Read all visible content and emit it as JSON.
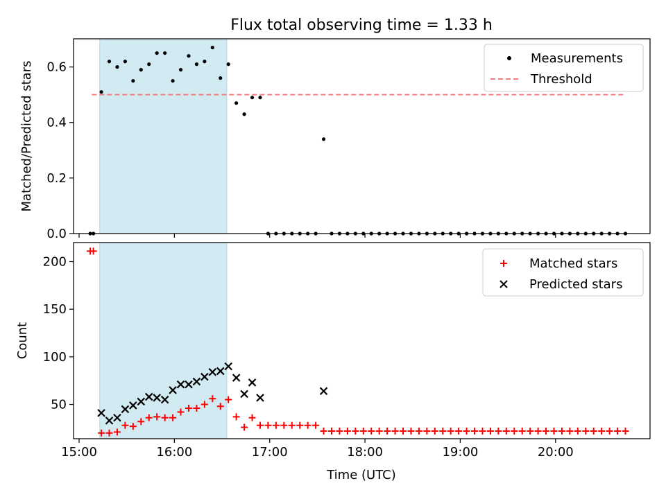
{
  "chart_data": [
    {
      "type": "scatter",
      "title": "Flux total observing time = 1.33 h",
      "ylabel": "Matched/Predicted stars",
      "xlabel": "",
      "xlim": [
        "15:00",
        "21:00"
      ],
      "ylim": [
        0,
        0.7
      ],
      "yticks": [
        "0.0",
        "0.2",
        "0.4",
        "0.6"
      ],
      "grid": false,
      "legend": "top-right",
      "shaded_interval": [
        "15:13",
        "16:33"
      ],
      "shaded_color": "#add8e6",
      "series": [
        {
          "name": "Measurements",
          "marker": "dot",
          "color": "#000000",
          "points": [
            [
              "15:07",
              0.0
            ],
            [
              "15:09",
              0.0
            ],
            [
              "15:14",
              0.51
            ],
            [
              "15:19",
              0.62
            ],
            [
              "15:24",
              0.6
            ],
            [
              "15:29",
              0.62
            ],
            [
              "15:34",
              0.55
            ],
            [
              "15:39",
              0.59
            ],
            [
              "15:44",
              0.61
            ],
            [
              "15:49",
              0.65
            ],
            [
              "15:54",
              0.65
            ],
            [
              "15:59",
              0.55
            ],
            [
              "16:04",
              0.59
            ],
            [
              "16:09",
              0.64
            ],
            [
              "16:14",
              0.61
            ],
            [
              "16:19",
              0.62
            ],
            [
              "16:24",
              0.67
            ],
            [
              "16:29",
              0.56
            ],
            [
              "16:34",
              0.61
            ],
            [
              "16:39",
              0.47
            ],
            [
              "16:44",
              0.43
            ],
            [
              "16:49",
              0.49
            ],
            [
              "16:54",
              0.49
            ],
            [
              "16:59",
              0.0
            ],
            [
              "17:04",
              0.0
            ],
            [
              "17:09",
              0.0
            ],
            [
              "17:14",
              0.0
            ],
            [
              "17:19",
              0.0
            ],
            [
              "17:24",
              0.0
            ],
            [
              "17:29",
              0.0
            ],
            [
              "17:34",
              0.34
            ],
            [
              "17:39",
              0.0
            ],
            [
              "17:44",
              0.0
            ],
            [
              "17:49",
              0.0
            ],
            [
              "17:54",
              0.0
            ],
            [
              "17:59",
              0.0
            ],
            [
              "18:04",
              0.0
            ],
            [
              "18:09",
              0.0
            ],
            [
              "18:14",
              0.0
            ],
            [
              "18:19",
              0.0
            ],
            [
              "18:24",
              0.0
            ],
            [
              "18:29",
              0.0
            ],
            [
              "18:34",
              0.0
            ],
            [
              "18:39",
              0.0
            ],
            [
              "18:44",
              0.0
            ],
            [
              "18:49",
              0.0
            ],
            [
              "18:54",
              0.0
            ],
            [
              "18:59",
              0.0
            ],
            [
              "19:04",
              0.0
            ],
            [
              "19:09",
              0.0
            ],
            [
              "19:14",
              0.0
            ],
            [
              "19:19",
              0.0
            ],
            [
              "19:24",
              0.0
            ],
            [
              "19:29",
              0.0
            ],
            [
              "19:34",
              0.0
            ],
            [
              "19:39",
              0.0
            ],
            [
              "19:44",
              0.0
            ],
            [
              "19:49",
              0.0
            ],
            [
              "19:54",
              0.0
            ],
            [
              "19:59",
              0.0
            ],
            [
              "20:04",
              0.0
            ],
            [
              "20:09",
              0.0
            ],
            [
              "20:14",
              0.0
            ],
            [
              "20:19",
              0.0
            ],
            [
              "20:24",
              0.0
            ],
            [
              "20:29",
              0.0
            ],
            [
              "20:34",
              0.0
            ],
            [
              "20:39",
              0.0
            ],
            [
              "20:44",
              0.0
            ]
          ]
        },
        {
          "name": "Threshold",
          "type": "line",
          "style": "dashed",
          "color": "#f08080",
          "points": [
            [
              "15:08",
              0.5
            ],
            [
              "20:44",
              0.5
            ]
          ]
        }
      ]
    },
    {
      "type": "scatter",
      "title": "",
      "ylabel": "Count",
      "xlabel": "Time (UTC)",
      "xlim": [
        "15:00",
        "21:00"
      ],
      "xticks": [
        "15:00",
        "16:00",
        "17:00",
        "18:00",
        "19:00",
        "20:00"
      ],
      "ylim": [
        14,
        220
      ],
      "yticks": [
        "50",
        "100",
        "150",
        "200"
      ],
      "grid": false,
      "legend": "top-right",
      "shaded_interval": [
        "15:13",
        "16:33"
      ],
      "shaded_color": "#add8e6",
      "series": [
        {
          "name": "Matched stars",
          "marker": "plus",
          "color": "#ff0000",
          "points": [
            [
              "15:07",
              211
            ],
            [
              "15:09",
              211
            ],
            [
              "15:14",
              20
            ],
            [
              "15:19",
              20
            ],
            [
              "15:24",
              21
            ],
            [
              "15:29",
              28
            ],
            [
              "15:34",
              27
            ],
            [
              "15:39",
              32
            ],
            [
              "15:44",
              36
            ],
            [
              "15:49",
              37
            ],
            [
              "15:54",
              36
            ],
            [
              "15:59",
              36
            ],
            [
              "16:04",
              42
            ],
            [
              "16:09",
              46
            ],
            [
              "16:14",
              46
            ],
            [
              "16:19",
              50
            ],
            [
              "16:24",
              56
            ],
            [
              "16:29",
              48
            ],
            [
              "16:34",
              55
            ],
            [
              "16:39",
              37
            ],
            [
              "16:44",
              26
            ],
            [
              "16:49",
              36
            ],
            [
              "16:54",
              28
            ],
            [
              "16:59",
              28
            ],
            [
              "17:04",
              28
            ],
            [
              "17:09",
              28
            ],
            [
              "17:14",
              28
            ],
            [
              "17:19",
              28
            ],
            [
              "17:24",
              28
            ],
            [
              "17:29",
              28
            ],
            [
              "17:34",
              22
            ],
            [
              "17:39",
              22
            ],
            [
              "17:44",
              22
            ],
            [
              "17:49",
              22
            ],
            [
              "17:54",
              22
            ],
            [
              "17:59",
              22
            ],
            [
              "18:04",
              22
            ],
            [
              "18:09",
              22
            ],
            [
              "18:14",
              22
            ],
            [
              "18:19",
              22
            ],
            [
              "18:24",
              22
            ],
            [
              "18:29",
              22
            ],
            [
              "18:34",
              22
            ],
            [
              "18:39",
              22
            ],
            [
              "18:44",
              22
            ],
            [
              "18:49",
              22
            ],
            [
              "18:54",
              22
            ],
            [
              "18:59",
              22
            ],
            [
              "19:04",
              22
            ],
            [
              "19:09",
              22
            ],
            [
              "19:14",
              22
            ],
            [
              "19:19",
              22
            ],
            [
              "19:24",
              22
            ],
            [
              "19:29",
              22
            ],
            [
              "19:34",
              22
            ],
            [
              "19:39",
              22
            ],
            [
              "19:44",
              22
            ],
            [
              "19:49",
              22
            ],
            [
              "19:54",
              22
            ],
            [
              "19:59",
              22
            ],
            [
              "20:04",
              22
            ],
            [
              "20:09",
              22
            ],
            [
              "20:14",
              22
            ],
            [
              "20:19",
              22
            ],
            [
              "20:24",
              22
            ],
            [
              "20:29",
              22
            ],
            [
              "20:34",
              22
            ],
            [
              "20:39",
              22
            ],
            [
              "20:44",
              22
            ]
          ]
        },
        {
          "name": "Predicted stars",
          "marker": "x",
          "color": "#000000",
          "points": [
            [
              "15:14",
              41
            ],
            [
              "15:19",
              33
            ],
            [
              "15:24",
              36
            ],
            [
              "15:29",
              45
            ],
            [
              "15:34",
              49
            ],
            [
              "15:39",
              53
            ],
            [
              "15:44",
              58
            ],
            [
              "15:49",
              57
            ],
            [
              "15:54",
              55
            ],
            [
              "15:59",
              65
            ],
            [
              "16:04",
              71
            ],
            [
              "16:09",
              71
            ],
            [
              "16:14",
              74
            ],
            [
              "16:19",
              79
            ],
            [
              "16:24",
              84
            ],
            [
              "16:29",
              85
            ],
            [
              "16:34",
              90
            ],
            [
              "16:39",
              78
            ],
            [
              "16:44",
              61
            ],
            [
              "16:49",
              73
            ],
            [
              "16:54",
              57
            ],
            [
              "17:34",
              64
            ]
          ]
        }
      ]
    }
  ]
}
